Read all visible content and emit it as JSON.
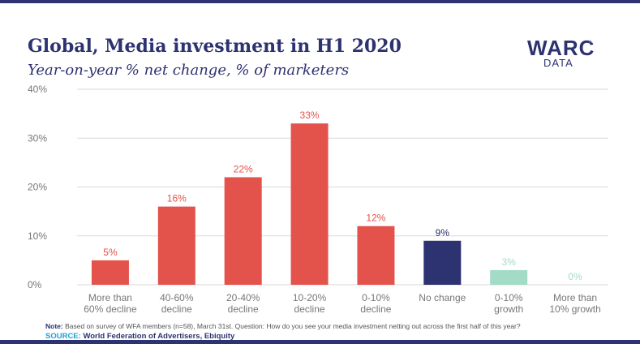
{
  "title": "Global, Media investment in H1 2020",
  "subtitle": "Year-on-year % net change, % of marketers",
  "logo": {
    "main": "WARC",
    "sub": "DATA"
  },
  "note": {
    "label": "Note:",
    "text": "Based on survey of WFA members (n=58), March 31st. Question: How do you see your media investment netting out across the first half of this year?"
  },
  "source": {
    "label": "SOURCE:",
    "text": "World Federation of Advertisers, Ebiquity"
  },
  "colors": {
    "decline": "#e4524c",
    "no_change": "#2d3270",
    "growth": "#a3dcc6",
    "grid": "#d9d9d9",
    "axis_text": "#777777"
  },
  "chart_data": {
    "type": "bar",
    "title": "Global, Media investment in H1 2020",
    "subtitle": "Year-on-year % net change, % of marketers",
    "categories": [
      [
        "More than",
        "60% decline"
      ],
      [
        "40-60%",
        "decline"
      ],
      [
        "20-40%",
        "decline"
      ],
      [
        "10-20%",
        "decline"
      ],
      [
        "0-10%",
        "decline"
      ],
      [
        "No change"
      ],
      [
        "0-10%",
        "growth"
      ],
      [
        "More than",
        "10% growth"
      ]
    ],
    "values": [
      5,
      16,
      22,
      33,
      12,
      9,
      3,
      0
    ],
    "data_labels": [
      "5%",
      "16%",
      "22%",
      "33%",
      "12%",
      "9%",
      "3%",
      "0%"
    ],
    "bar_colors": [
      "decline",
      "decline",
      "decline",
      "decline",
      "decline",
      "no_change",
      "growth",
      "growth"
    ],
    "yticks": [
      0,
      10,
      20,
      30,
      40
    ],
    "ytick_labels": [
      "0%",
      "10%",
      "20%",
      "30%",
      "40%"
    ],
    "ylim": [
      0,
      40
    ],
    "grid": true,
    "legend": "none"
  }
}
